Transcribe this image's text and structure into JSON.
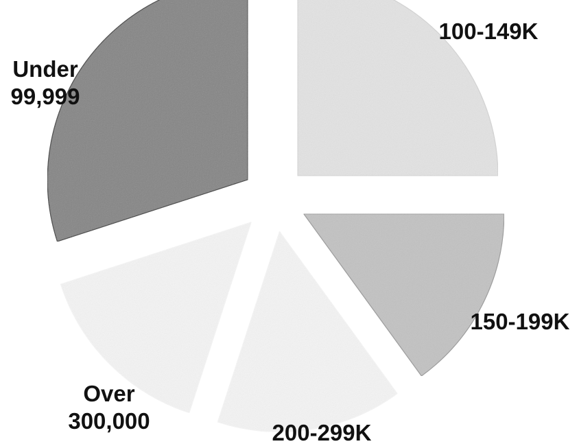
{
  "chart_data": {
    "type": "pie",
    "title": "",
    "categories": [
      "100-149K",
      "150-199K",
      "200-299K",
      "Over 300,000",
      "Under 99,999"
    ],
    "label_lines": [
      [
        "100-149K"
      ],
      [
        "150-199K"
      ],
      [
        "200-299K"
      ],
      [
        "Over",
        "300,000"
      ],
      [
        "Under",
        "99,999"
      ]
    ],
    "values": [
      25,
      15,
      15,
      15,
      30
    ],
    "colors": [
      "#e3e3e3",
      "#c2c2c2",
      "#f4f4f4",
      "#f4f4f4",
      "#858585"
    ],
    "legend": "none",
    "exploded": true
  }
}
